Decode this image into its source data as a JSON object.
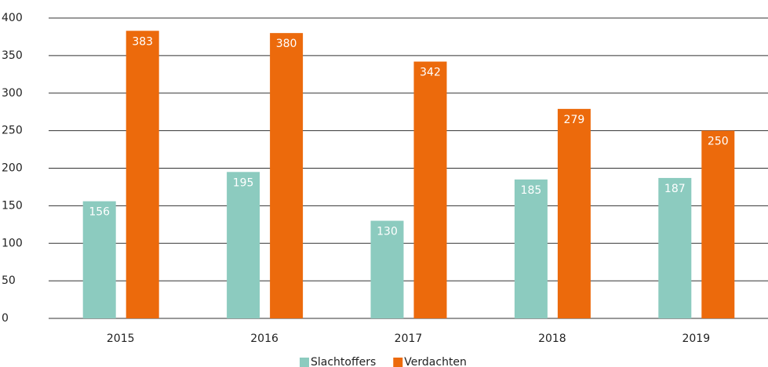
{
  "chart_data": {
    "type": "bar",
    "categories": [
      "2015",
      "2016",
      "2017",
      "2018",
      "2019"
    ],
    "series": [
      {
        "name": "Slachtoffers",
        "color": "#8ccbbf",
        "values": [
          156,
          195,
          130,
          185,
          187
        ]
      },
      {
        "name": "Verdachten",
        "color": "#ec6a0c",
        "values": [
          383,
          380,
          342,
          279,
          250
        ]
      }
    ],
    "ylim": [
      0,
      400
    ],
    "yticks": [
      0,
      50,
      100,
      150,
      200,
      250,
      300,
      350,
      400
    ],
    "grid": true,
    "legend": "bottom"
  }
}
